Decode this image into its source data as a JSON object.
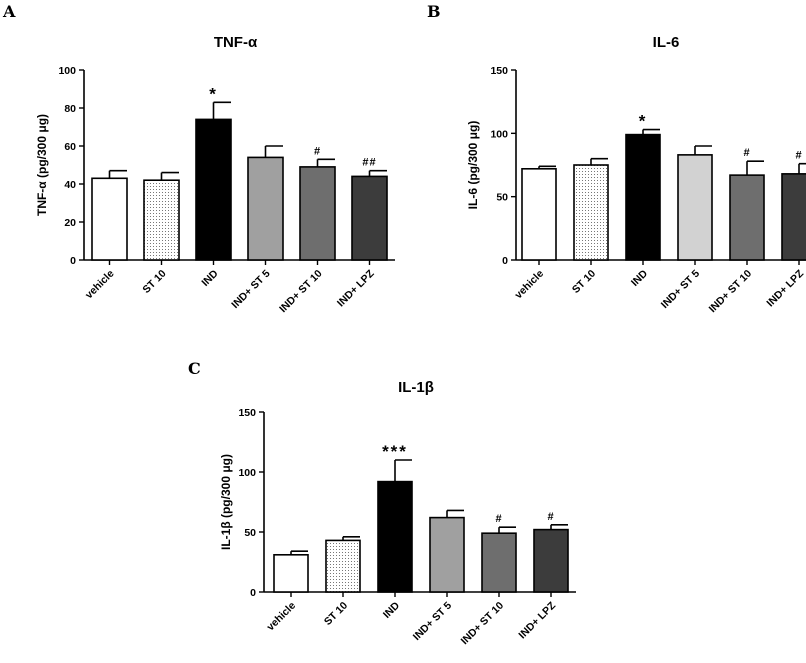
{
  "panels": [
    {
      "letter": "A"
    },
    {
      "letter": "B"
    },
    {
      "letter": "C"
    }
  ],
  "colors": {
    "vehicle": "#ffffff",
    "st10": "#ffffff",
    "ind": "#000000",
    "ind_st5_a": "#a0a0a0",
    "ind_st5_b": "#d2d2d2",
    "ind_st10": "#6e6e6e",
    "ind_lpz": "#3c3c3c",
    "axis": "#000000"
  },
  "chart_data": [
    {
      "type": "bar",
      "title": "TNF-α",
      "ylabel": "TNF-α (pg/300 μg)",
      "ylim": [
        0,
        100
      ],
      "yticks": [
        "0",
        "20",
        "40",
        "60",
        "80",
        "100"
      ],
      "categories": [
        "vehicle",
        "ST 10",
        "IND",
        "IND+ ST 5",
        "IND+ ST 10",
        "IND+ LPZ"
      ],
      "values": [
        43,
        42,
        74,
        54,
        49,
        44
      ],
      "errors": [
        4,
        4,
        9,
        6,
        4,
        3
      ],
      "annotations": [
        "",
        "",
        "*",
        "",
        "#",
        "##"
      ],
      "legend": "none",
      "grid": false
    },
    {
      "type": "bar",
      "title": "IL-6",
      "ylabel": "IL-6 (pg/300 μg)",
      "ylim": [
        0,
        150
      ],
      "yticks": [
        "0",
        "50",
        "100",
        "150"
      ],
      "categories": [
        "vehicle",
        "ST 10",
        "IND",
        "IND+ ST 5",
        "IND+ ST 10",
        "IND+ LPZ"
      ],
      "values": [
        72,
        75,
        99,
        83,
        67,
        68
      ],
      "errors": [
        2,
        5,
        4,
        7,
        11,
        8
      ],
      "annotations": [
        "",
        "",
        "*",
        "",
        "#",
        "#"
      ],
      "legend": "none",
      "grid": false
    },
    {
      "type": "bar",
      "title": "IL-1β",
      "ylabel": "IL-1β (pg/300 μg)",
      "ylim": [
        0,
        150
      ],
      "yticks": [
        "0",
        "50",
        "100",
        "150"
      ],
      "categories": [
        "vehicle",
        "ST 10",
        "IND",
        "IND+ ST 5",
        "IND+ ST 10",
        "IND+ LPZ"
      ],
      "values": [
        31,
        43,
        92,
        62,
        49,
        52
      ],
      "errors": [
        3,
        3,
        18,
        6,
        5,
        4
      ],
      "annotations": [
        "",
        "",
        "***",
        "",
        "#",
        "#"
      ],
      "legend": "none",
      "grid": false
    }
  ]
}
